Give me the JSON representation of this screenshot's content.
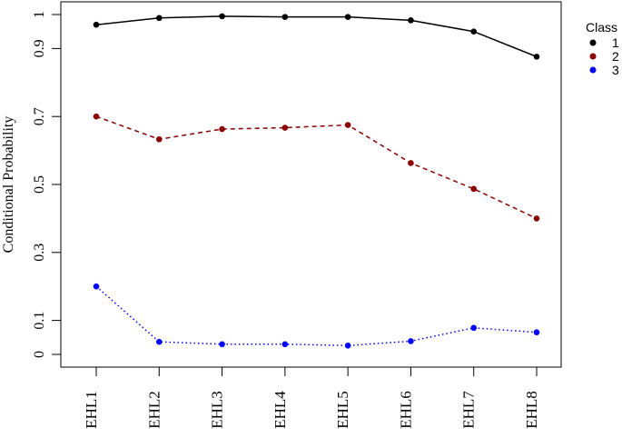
{
  "chart_data": {
    "type": "line",
    "title": "",
    "xlabel": "",
    "ylabel": "Conditional Probability",
    "categories": [
      "EHL1",
      "EHL2",
      "EHL3",
      "EHL4",
      "EHL5",
      "EHL6",
      "EHL7",
      "EHL8"
    ],
    "ylim": [
      0,
      1
    ],
    "yticks": [
      0,
      0.1,
      0.3,
      0.5,
      0.7,
      0.9,
      1
    ],
    "ytick_labels": [
      "0",
      "0.1",
      "0.3",
      "0.5",
      "0.7",
      "0.9",
      "1"
    ],
    "grid": false,
    "legend": {
      "title": "Class",
      "placement": "right"
    },
    "series": [
      {
        "name": "1",
        "color": "#000000",
        "line_style": "solid",
        "values": [
          0.97,
          0.99,
          0.995,
          0.993,
          0.993,
          0.983,
          0.95,
          0.876
        ]
      },
      {
        "name": "2",
        "color": "#8b0000",
        "line_style": "dashed",
        "values": [
          0.7,
          0.633,
          0.663,
          0.667,
          0.675,
          0.563,
          0.487,
          0.4
        ]
      },
      {
        "name": "3",
        "color": "#0000ff",
        "line_style": "dotted",
        "values": [
          0.2,
          0.037,
          0.03,
          0.03,
          0.026,
          0.039,
          0.078,
          0.065
        ]
      }
    ]
  }
}
